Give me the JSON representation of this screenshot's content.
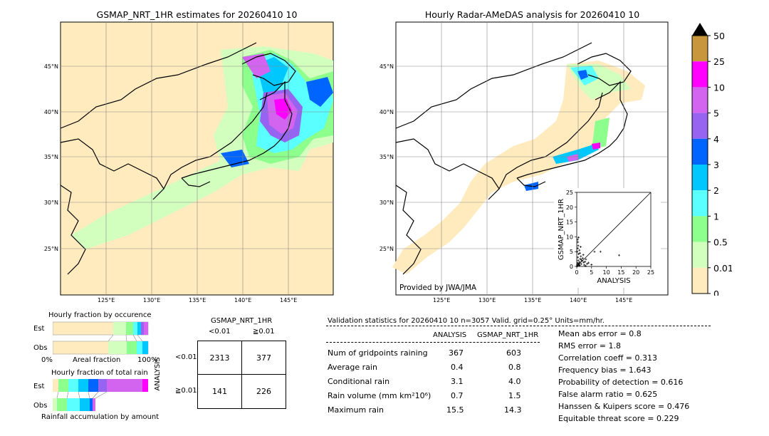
{
  "map_left": {
    "title": "GSMAP_NRT_1HR estimates for 20260410 10",
    "lat_labels": [
      "45°N",
      "40°N",
      "35°N",
      "30°N",
      "25°N"
    ],
    "lon_labels": [
      "125°E",
      "130°E",
      "135°E",
      "140°E",
      "145°E"
    ]
  },
  "map_right": {
    "title": "Hourly Radar-AMeDAS analysis for 20260410 10",
    "lat_labels": [
      "45°N",
      "40°N",
      "35°N",
      "30°N",
      "25°N"
    ],
    "lon_labels": [
      "125°E",
      "130°E",
      "135°E",
      "140°E",
      "145°E"
    ],
    "credit": "Provided by JWA/JMA"
  },
  "colorbar": {
    "labels": [
      "50",
      "25",
      "10",
      "5",
      "4",
      "3",
      "2",
      "1",
      "0.5",
      "0.01",
      "0"
    ],
    "colors": [
      "#c8963c",
      "#ff00ff",
      "#d264f0",
      "#9664f0",
      "#0064ff",
      "#00c8ff",
      "#5affff",
      "#8cff8c",
      "#d2ffbe",
      "#ffebbe"
    ]
  },
  "scatter": {
    "xlabel": "ANALYSIS",
    "ylabel": "GSMAP_NRT_1HR",
    "ticks": [
      "0",
      "5",
      "10",
      "15",
      "20",
      "25"
    ],
    "xlim": [
      0,
      25
    ],
    "ylim": [
      0,
      25
    ]
  },
  "occurrence": {
    "title": "Hourly fraction by occurence",
    "row_est": "Est",
    "row_obs": "Obs",
    "axis_left": "0%",
    "axis_mid": "Areal fraction",
    "axis_right": "100%"
  },
  "rainfall": {
    "title": "Hourly fraction of total rain",
    "row_est": "Est",
    "row_obs": "Obs",
    "footer": "Rainfall accumulation by amount"
  },
  "contingency": {
    "title": "GSMAP_NRT_1HR",
    "col_lt": "<0.01",
    "col_ge": "≧0.01",
    "side": "ANALYSIS",
    "row_lt": "<0.01",
    "row_ge": "≧0.01",
    "values": [
      [
        "2313",
        "377"
      ],
      [
        "141",
        "226"
      ]
    ]
  },
  "validation": {
    "header": "Validation statistics for 20260410 10  n=3057 Valid. grid=0.25° Units=mm/hr.",
    "col_analysis": "ANALYSIS",
    "col_gsmap": "GSMAP_NRT_1HR",
    "rows": [
      {
        "label": "Num of gridpoints raining",
        "analysis": "367",
        "gsmap": "603"
      },
      {
        "label": "Average rain",
        "analysis": "0.4",
        "gsmap": "0.8"
      },
      {
        "label": "Conditional rain",
        "analysis": "3.1",
        "gsmap": "4.0"
      },
      {
        "label": "Rain volume (mm km²10⁶)",
        "analysis": "0.7",
        "gsmap": "1.5"
      },
      {
        "label": "Maximum rain",
        "analysis": "15.5",
        "gsmap": "14.3"
      }
    ],
    "scores": [
      "Mean abs error =    0.8",
      "RMS error =    1.8",
      "Correlation coeff =  0.313",
      "Frequency bias =  1.643",
      "Probability of detection =  0.616",
      "False alarm ratio =  0.625",
      "Hanssen & Kuipers score =  0.476",
      "Equitable threat score =  0.229"
    ]
  },
  "chart_data": [
    {
      "type": "scatter",
      "title": "",
      "xlabel": "ANALYSIS",
      "ylabel": "GSMAP_NRT_1HR",
      "xlim": [
        0,
        25
      ],
      "ylim": [
        0,
        25
      ],
      "points": [
        [
          0.2,
          0.5
        ],
        [
          0.3,
          1.2
        ],
        [
          0.5,
          2.0
        ],
        [
          0.4,
          3.1
        ],
        [
          0.6,
          4.2
        ],
        [
          0.2,
          5.0
        ],
        [
          0.3,
          6.1
        ],
        [
          0.5,
          7.0
        ],
        [
          0.4,
          8.2
        ],
        [
          0.3,
          9.1
        ],
        [
          0.6,
          9.8
        ],
        [
          0.8,
          0.3
        ],
        [
          1.0,
          1.5
        ],
        [
          1.2,
          2.5
        ],
        [
          1.4,
          3.4
        ],
        [
          1.1,
          4.5
        ],
        [
          0.9,
          5.5
        ],
        [
          1.3,
          6.6
        ],
        [
          1.5,
          0.8
        ],
        [
          1.8,
          1.9
        ],
        [
          2.0,
          2.8
        ],
        [
          2.2,
          3.9
        ],
        [
          2.5,
          0.5
        ],
        [
          2.8,
          1.6
        ],
        [
          3.1,
          2.4
        ],
        [
          3.5,
          0.9
        ],
        [
          0.1,
          0.1
        ],
        [
          0.2,
          0.2
        ],
        [
          0.7,
          0.6
        ],
        [
          1.0,
          0.4
        ],
        [
          4.0,
          1.2
        ],
        [
          5.0,
          0.6
        ],
        [
          6.0,
          5.0
        ],
        [
          8.0,
          5.0
        ],
        [
          14.3,
          3.8
        ],
        [
          3.0,
          0.2
        ],
        [
          0.5,
          0.9
        ],
        [
          0.8,
          1.1
        ],
        [
          1.6,
          2.2
        ],
        [
          2.3,
          1.4
        ]
      ]
    }
  ]
}
